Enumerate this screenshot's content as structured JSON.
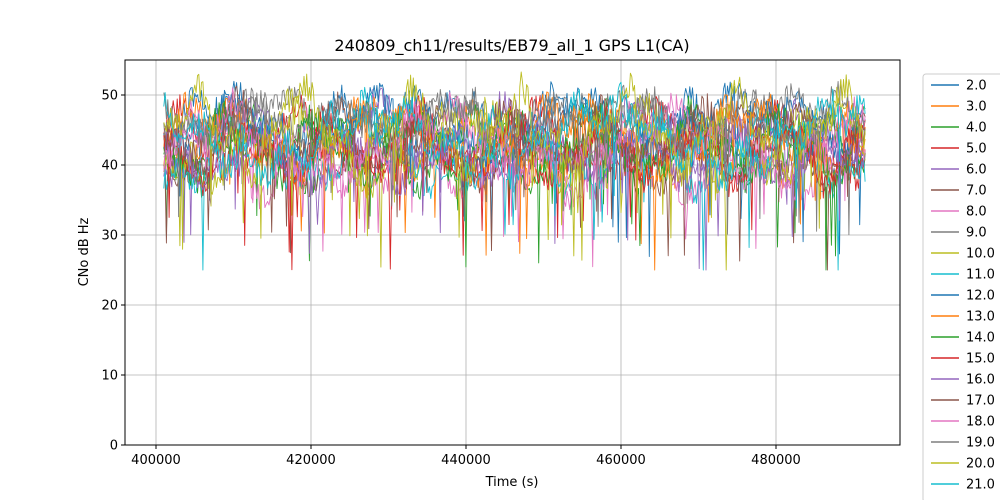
{
  "chart_data": {
    "type": "line",
    "title": "240809_ch11/results/EB79_all_1 GPS L1(CA)",
    "xlabel": "Time (s)",
    "ylabel": "CNo dB Hz",
    "xlim": [
      396000,
      496000
    ],
    "ylim": [
      0,
      55
    ],
    "xticks": [
      400000,
      420000,
      440000,
      460000,
      480000
    ],
    "xtick_labels": [
      "400000",
      "420000",
      "440000",
      "460000",
      "480000"
    ],
    "yticks": [
      0,
      10,
      20,
      30,
      40,
      50
    ],
    "ytick_labels": [
      "0",
      "10",
      "20",
      "30",
      "40",
      "50"
    ],
    "grid": true,
    "legend_position": "right",
    "data_x_range": [
      401000,
      491500
    ],
    "series": [
      {
        "name": "2.0",
        "color": "#1f77b4",
        "mean": 45,
        "amp": 5
      },
      {
        "name": "3.0",
        "color": "#ff7f0e",
        "mean": 43,
        "amp": 5
      },
      {
        "name": "4.0",
        "color": "#2ca02c",
        "mean": 42,
        "amp": 5
      },
      {
        "name": "5.0",
        "color": "#d62728",
        "mean": 43,
        "amp": 5
      },
      {
        "name": "6.0",
        "color": "#9467bd",
        "mean": 44,
        "amp": 5
      },
      {
        "name": "7.0",
        "color": "#8c564b",
        "mean": 42,
        "amp": 5
      },
      {
        "name": "8.0",
        "color": "#e377c2",
        "mean": 41,
        "amp": 6
      },
      {
        "name": "9.0",
        "color": "#7f7f7f",
        "mean": 47,
        "amp": 3
      },
      {
        "name": "10.0",
        "color": "#bcbd22",
        "mean": 43,
        "amp": 6
      },
      {
        "name": "11.0",
        "color": "#17becf",
        "mean": 42,
        "amp": 6
      },
      {
        "name": "12.0",
        "color": "#1f77b4",
        "mean": 46,
        "amp": 5
      },
      {
        "name": "13.0",
        "color": "#ff7f0e",
        "mean": 44,
        "amp": 5
      },
      {
        "name": "14.0",
        "color": "#2ca02c",
        "mean": 43,
        "amp": 5
      },
      {
        "name": "15.0",
        "color": "#d62728",
        "mean": 42,
        "amp": 5
      },
      {
        "name": "16.0",
        "color": "#9467bd",
        "mean": 41,
        "amp": 4
      },
      {
        "name": "17.0",
        "color": "#8c564b",
        "mean": 44,
        "amp": 5
      },
      {
        "name": "18.0",
        "color": "#e377c2",
        "mean": 43,
        "amp": 6
      },
      {
        "name": "19.0",
        "color": "#7f7f7f",
        "mean": 46,
        "amp": 4
      },
      {
        "name": "20.0",
        "color": "#bcbd22",
        "mean": 45,
        "amp": 6
      },
      {
        "name": "21.0",
        "color": "#17becf",
        "mean": 44,
        "amp": 6
      }
    ]
  }
}
